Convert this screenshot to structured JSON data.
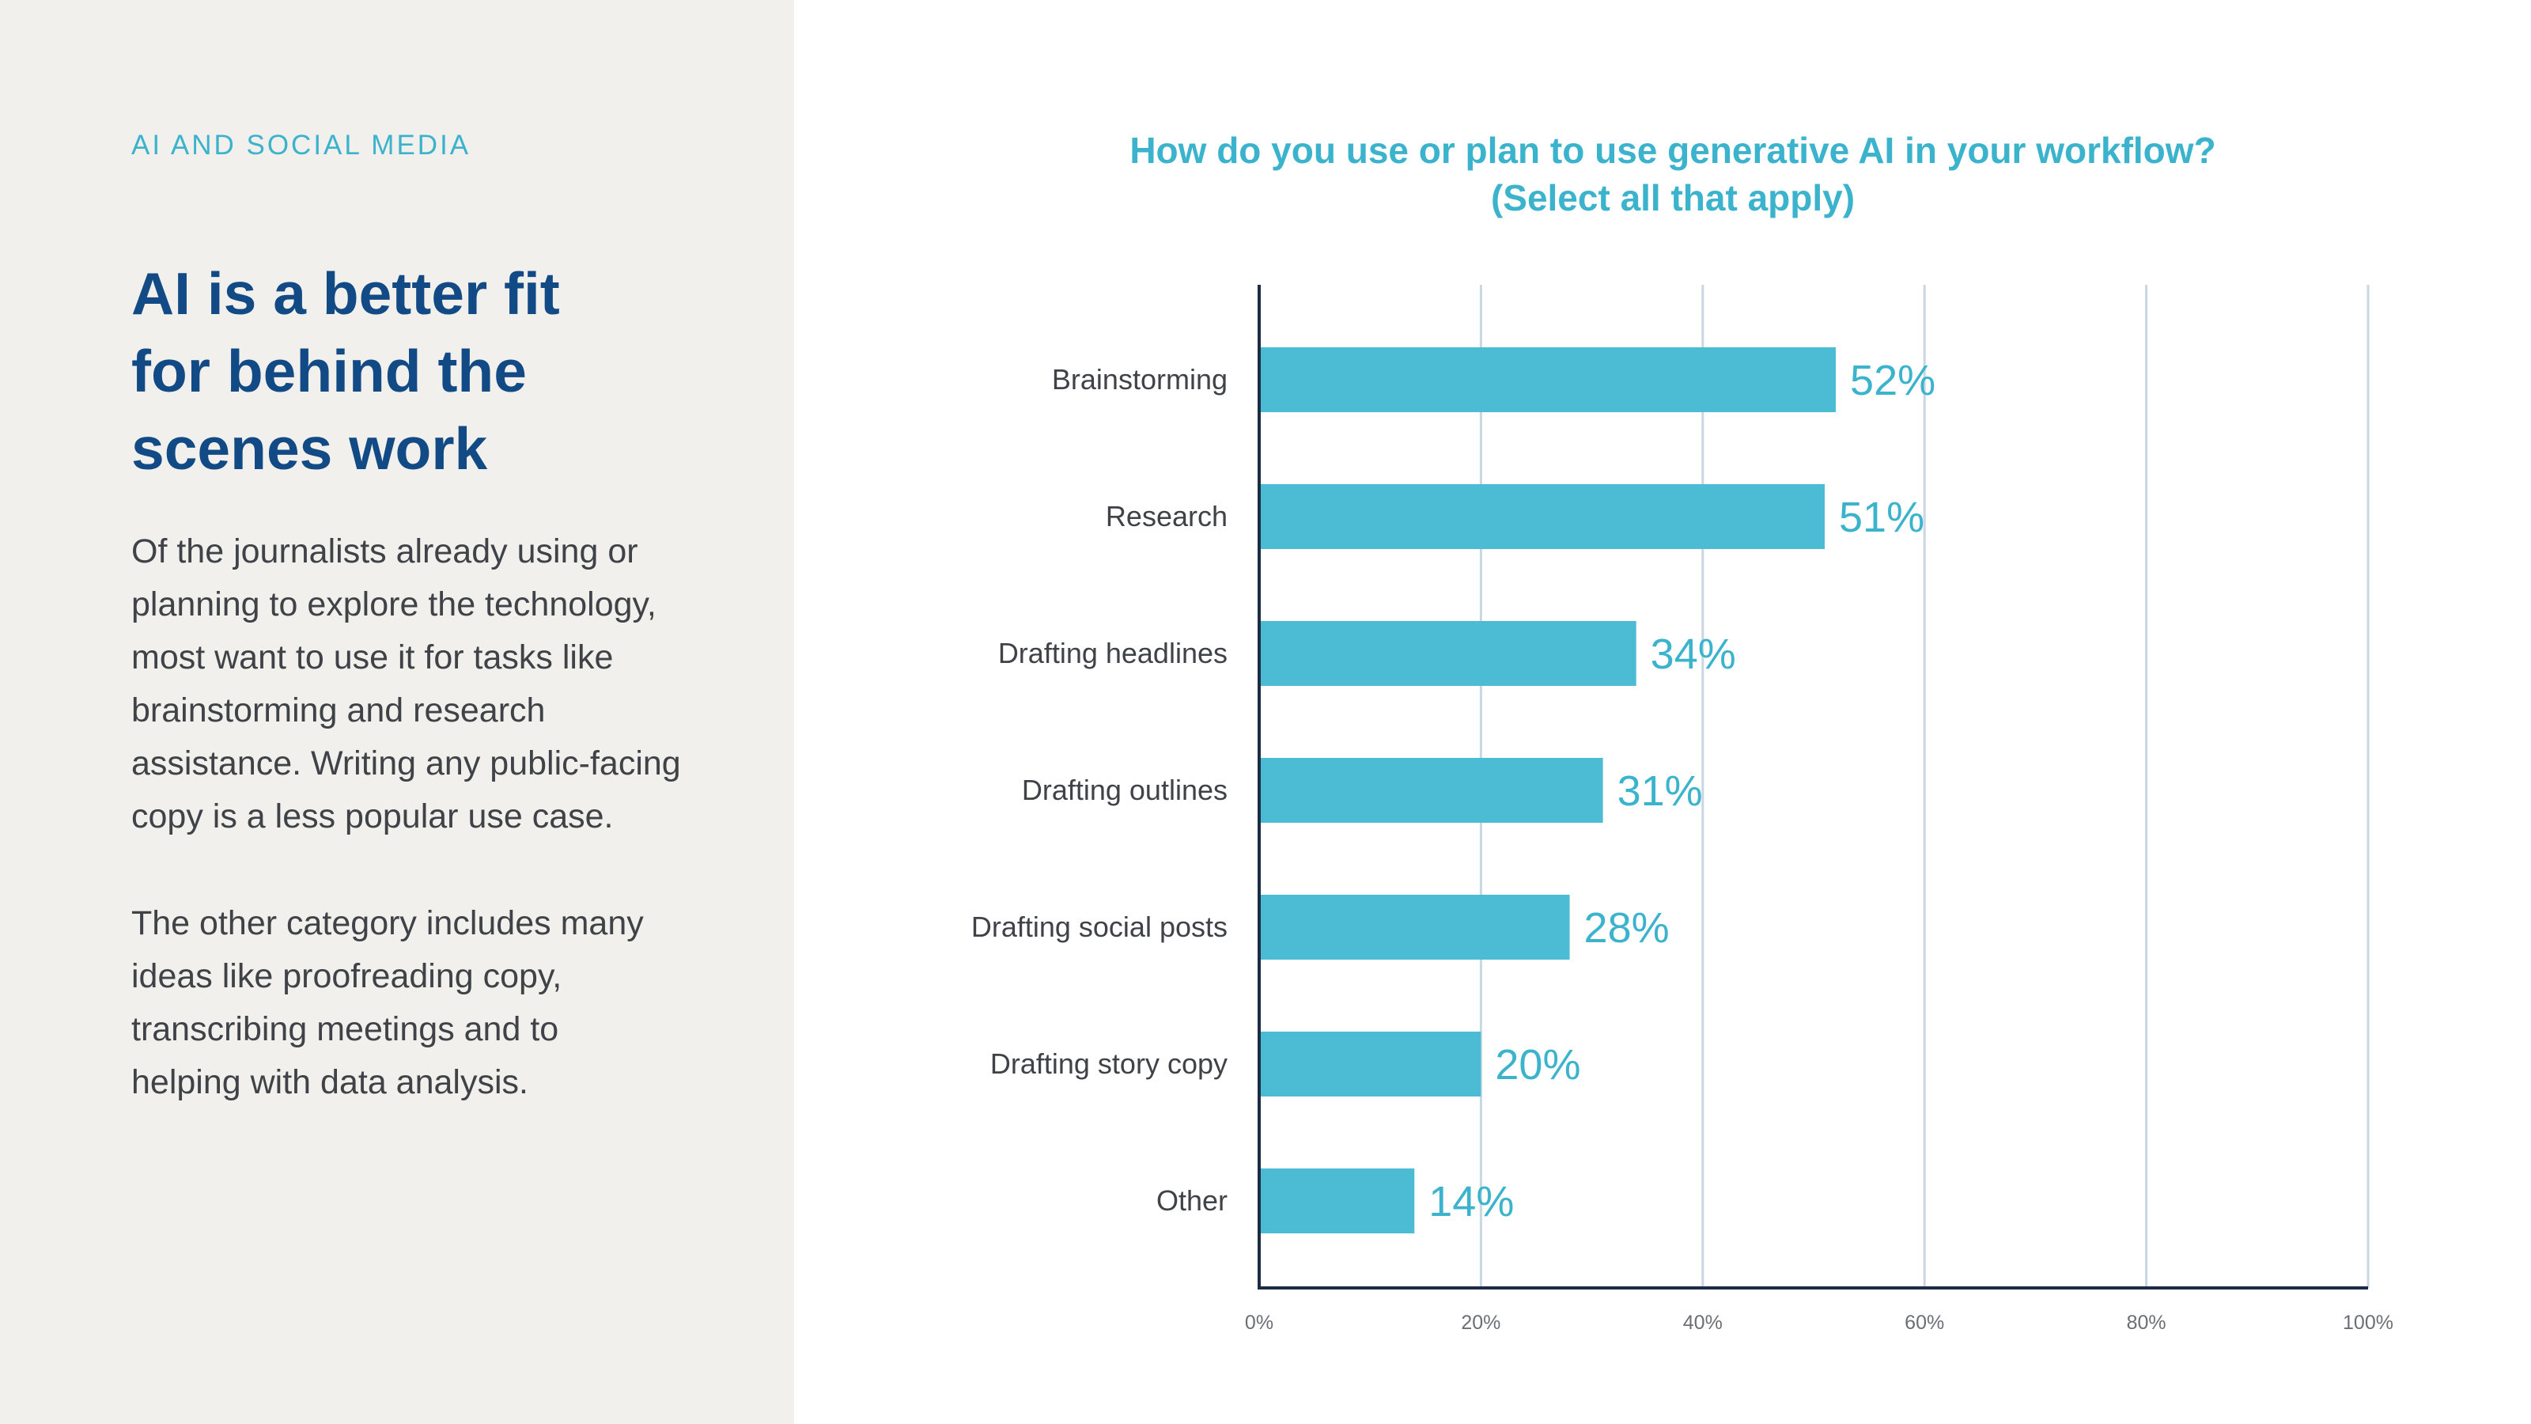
{
  "sidebar": {
    "eyebrow": "AI AND SOCIAL MEDIA",
    "headline_lines": [
      "AI is a better fit",
      "for behind the",
      "scenes work"
    ],
    "paragraph_1_lines": [
      "Of the journalists already using or",
      "planning to explore the technology,",
      "most want to use it for tasks like",
      "brainstorming and research",
      "assistance. Writing any public-facing",
      "copy is a less popular use case."
    ],
    "paragraph_2_lines": [
      "The other category includes many",
      "ideas like proofreading copy,",
      "transcribing meetings and to",
      "helping with data analysis."
    ]
  },
  "colors": {
    "bar": "#4bbcd3",
    "accent": "#3bb3cd",
    "headline": "#124a85",
    "axis": "#1c2c44",
    "grid": "#c9d6e4",
    "panel_bg": "#f1f0ec"
  },
  "chart_data": {
    "type": "bar",
    "orientation": "horizontal",
    "title_lines": [
      "How do you use or plan to use generative AI in your workflow?",
      "(Select all that apply)"
    ],
    "categories": [
      "Brainstorming",
      "Research",
      "Drafting headlines",
      "Drafting outlines",
      "Drafting social posts",
      "Drafting story copy",
      "Other"
    ],
    "values": [
      52,
      51,
      34,
      31,
      28,
      20,
      14
    ],
    "value_labels": [
      "52%",
      "51%",
      "34%",
      "31%",
      "28%",
      "20%",
      "14%"
    ],
    "xlim": [
      0,
      100
    ],
    "xticks": [
      0,
      20,
      40,
      60,
      80,
      100
    ],
    "xtick_labels": [
      "0%",
      "20%",
      "40%",
      "60%",
      "80%",
      "100%"
    ],
    "grid": true,
    "legend": false
  }
}
